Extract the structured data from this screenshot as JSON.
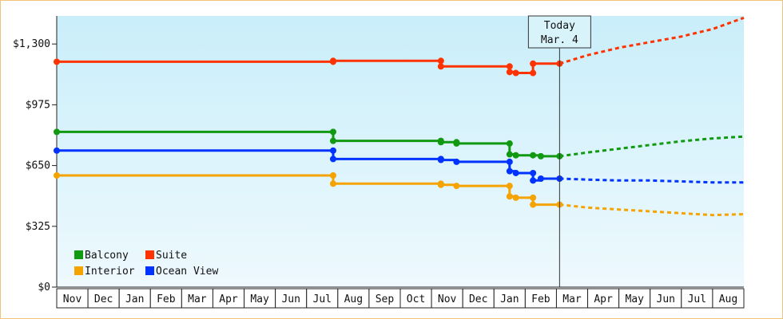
{
  "chart_data": {
    "type": "line",
    "y_axis": {
      "ticks": [
        0,
        325,
        650,
        975,
        1300
      ],
      "tick_labels": [
        "$0",
        "$325",
        "$650",
        "$975",
        "$1,300"
      ],
      "ylim": [
        0,
        1450
      ]
    },
    "x_axis": {
      "months": [
        "Nov",
        "Dec",
        "Jan",
        "Feb",
        "Mar",
        "Apr",
        "May",
        "Jun",
        "Jul",
        "Aug",
        "Sep",
        "Oct",
        "Nov",
        "Dec",
        "Jan",
        "Feb",
        "Mar",
        "Apr",
        "May",
        "Jun",
        "Jul",
        "Aug"
      ]
    },
    "today_marker": {
      "line1": "Today",
      "line2": "Mar. 4",
      "x_month": 16.1
    },
    "grid": false,
    "legend_placement": "bottom-left",
    "legend": [
      {
        "label": "Balcony",
        "color": "#119911"
      },
      {
        "label": "Suite",
        "color": "#ff3300"
      },
      {
        "label": "Interior",
        "color": "#f5a300"
      },
      {
        "label": "Ocean View",
        "color": "#0033ff"
      }
    ],
    "series": [
      {
        "name": "Suite",
        "color": "#ff3300",
        "points": [
          [
            0,
            1205
          ],
          [
            8.85,
            1205
          ],
          [
            8.85,
            1210
          ],
          [
            12.3,
            1210
          ],
          [
            12.3,
            1180
          ],
          [
            14.5,
            1180
          ],
          [
            14.5,
            1150
          ],
          [
            14.7,
            1150
          ],
          [
            14.7,
            1145
          ],
          [
            15.25,
            1145
          ],
          [
            15.25,
            1195
          ],
          [
            16.1,
            1195
          ]
        ],
        "markers": [
          [
            0,
            1205
          ],
          [
            8.85,
            1205
          ],
          [
            8.85,
            1210
          ],
          [
            12.3,
            1210
          ],
          [
            12.3,
            1180
          ],
          [
            14.5,
            1180
          ],
          [
            14.5,
            1150
          ],
          [
            14.7,
            1145
          ],
          [
            15.25,
            1145
          ],
          [
            15.25,
            1195
          ],
          [
            16.1,
            1195
          ]
        ],
        "forecast": [
          [
            16.1,
            1195
          ],
          [
            17,
            1240
          ],
          [
            18,
            1280
          ],
          [
            19,
            1310
          ],
          [
            20,
            1340
          ],
          [
            21,
            1380
          ],
          [
            22,
            1440
          ]
        ]
      },
      {
        "name": "Balcony",
        "color": "#119911",
        "points": [
          [
            0,
            830
          ],
          [
            8.85,
            830
          ],
          [
            8.85,
            782
          ],
          [
            12.3,
            782
          ],
          [
            12.3,
            775
          ],
          [
            12.8,
            775
          ],
          [
            12.8,
            768
          ],
          [
            14.5,
            768
          ],
          [
            14.5,
            710
          ],
          [
            14.7,
            710
          ],
          [
            14.7,
            705
          ],
          [
            15.25,
            705
          ],
          [
            15.25,
            705
          ],
          [
            15.5,
            705
          ],
          [
            15.5,
            700
          ],
          [
            16.1,
            700
          ]
        ],
        "markers": [
          [
            0,
            830
          ],
          [
            8.85,
            830
          ],
          [
            8.85,
            782
          ],
          [
            12.3,
            782
          ],
          [
            12.3,
            775
          ],
          [
            12.8,
            775
          ],
          [
            12.8,
            768
          ],
          [
            14.5,
            768
          ],
          [
            14.5,
            710
          ],
          [
            14.7,
            705
          ],
          [
            15.25,
            705
          ],
          [
            15.5,
            700
          ],
          [
            16.1,
            700
          ]
        ],
        "forecast": [
          [
            16.1,
            700
          ],
          [
            17,
            720
          ],
          [
            18,
            740
          ],
          [
            19,
            760
          ],
          [
            20,
            780
          ],
          [
            21,
            795
          ],
          [
            22,
            805
          ]
        ]
      },
      {
        "name": "Ocean View",
        "color": "#0033ff",
        "points": [
          [
            0,
            730
          ],
          [
            8.85,
            730
          ],
          [
            8.85,
            685
          ],
          [
            12.3,
            685
          ],
          [
            12.3,
            680
          ],
          [
            12.8,
            680
          ],
          [
            12.8,
            670
          ],
          [
            14.5,
            670
          ],
          [
            14.5,
            620
          ],
          [
            14.7,
            620
          ],
          [
            14.7,
            610
          ],
          [
            15.25,
            610
          ],
          [
            15.25,
            570
          ],
          [
            15.5,
            570
          ],
          [
            15.5,
            580
          ],
          [
            16.1,
            580
          ]
        ],
        "markers": [
          [
            0,
            730
          ],
          [
            8.85,
            730
          ],
          [
            8.85,
            685
          ],
          [
            12.3,
            685
          ],
          [
            12.3,
            680
          ],
          [
            12.8,
            670
          ],
          [
            14.5,
            670
          ],
          [
            14.5,
            620
          ],
          [
            14.7,
            610
          ],
          [
            15.25,
            610
          ],
          [
            15.25,
            570
          ],
          [
            15.5,
            580
          ],
          [
            16.1,
            580
          ]
        ],
        "forecast": [
          [
            16.1,
            580
          ],
          [
            17,
            575
          ],
          [
            18,
            570
          ],
          [
            19,
            570
          ],
          [
            20,
            565
          ],
          [
            21,
            560
          ],
          [
            22,
            560
          ]
        ]
      },
      {
        "name": "Interior",
        "color": "#f5a300",
        "points": [
          [
            0,
            597
          ],
          [
            8.85,
            597
          ],
          [
            8.85,
            553
          ],
          [
            12.3,
            553
          ],
          [
            12.3,
            547
          ],
          [
            12.8,
            547
          ],
          [
            12.8,
            541
          ],
          [
            14.5,
            541
          ],
          [
            14.5,
            485
          ],
          [
            14.7,
            485
          ],
          [
            14.7,
            478
          ],
          [
            15.25,
            478
          ],
          [
            15.25,
            441
          ],
          [
            16.1,
            441
          ]
        ],
        "markers": [
          [
            0,
            597
          ],
          [
            8.85,
            597
          ],
          [
            8.85,
            553
          ],
          [
            12.3,
            553
          ],
          [
            12.3,
            547
          ],
          [
            12.8,
            541
          ],
          [
            14.5,
            541
          ],
          [
            14.5,
            485
          ],
          [
            14.7,
            478
          ],
          [
            15.25,
            478
          ],
          [
            15.25,
            441
          ],
          [
            16.1,
            441
          ]
        ],
        "forecast": [
          [
            16.1,
            441
          ],
          [
            17,
            425
          ],
          [
            18,
            415
          ],
          [
            19,
            405
          ],
          [
            20,
            395
          ],
          [
            21,
            385
          ],
          [
            22,
            390
          ]
        ]
      }
    ]
  }
}
